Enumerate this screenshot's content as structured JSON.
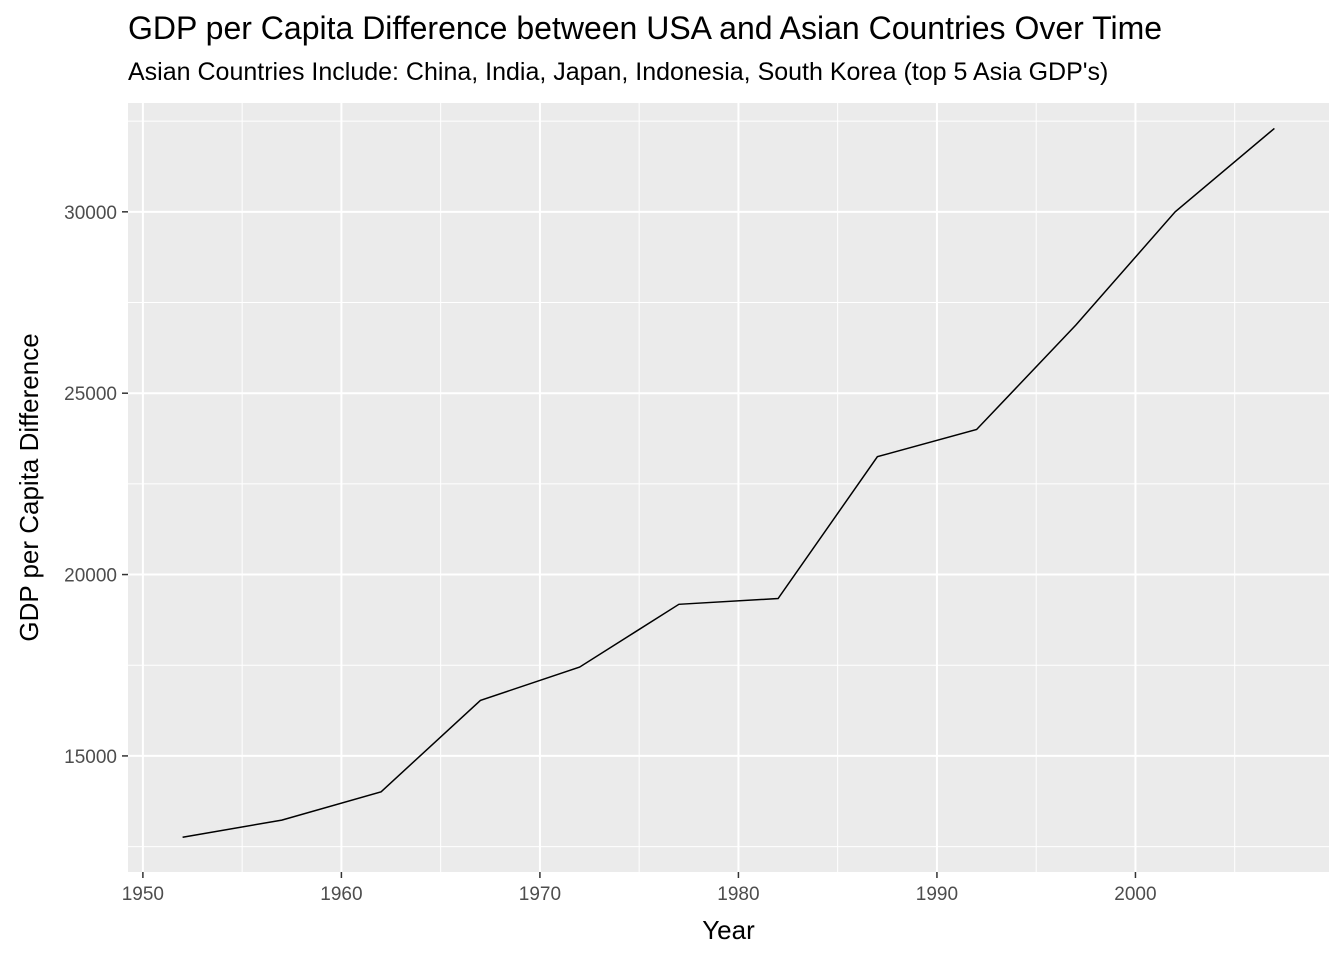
{
  "chart_data": {
    "type": "line",
    "title": "GDP per Capita Difference between USA and Asian Countries Over Time",
    "subtitle": "Asian Countries Include: China, India, Japan, Indonesia, South Korea (top 5 Asia GDP's)",
    "xlabel": "Year",
    "ylabel": "GDP per Capita Difference",
    "xlim": [
      1949.25,
      2009.75
    ],
    "ylim": [
      11800,
      33000
    ],
    "x_ticks": [
      1950,
      1960,
      1970,
      1980,
      1990,
      2000
    ],
    "y_ticks": [
      15000,
      20000,
      25000,
      30000
    ],
    "grid": true,
    "colors": {
      "panel": "#ebebeb",
      "grid": "#ffffff",
      "line": "#000000"
    },
    "series": [
      {
        "x": [
          1952,
          1957,
          1962,
          1967,
          1972,
          1977,
          1982,
          1987,
          1992,
          1997,
          2002,
          2007
        ],
        "values": [
          12760,
          13230,
          14010,
          16530,
          17450,
          19180,
          19340,
          23250,
          24000,
          26880,
          30000,
          32300
        ]
      }
    ]
  }
}
